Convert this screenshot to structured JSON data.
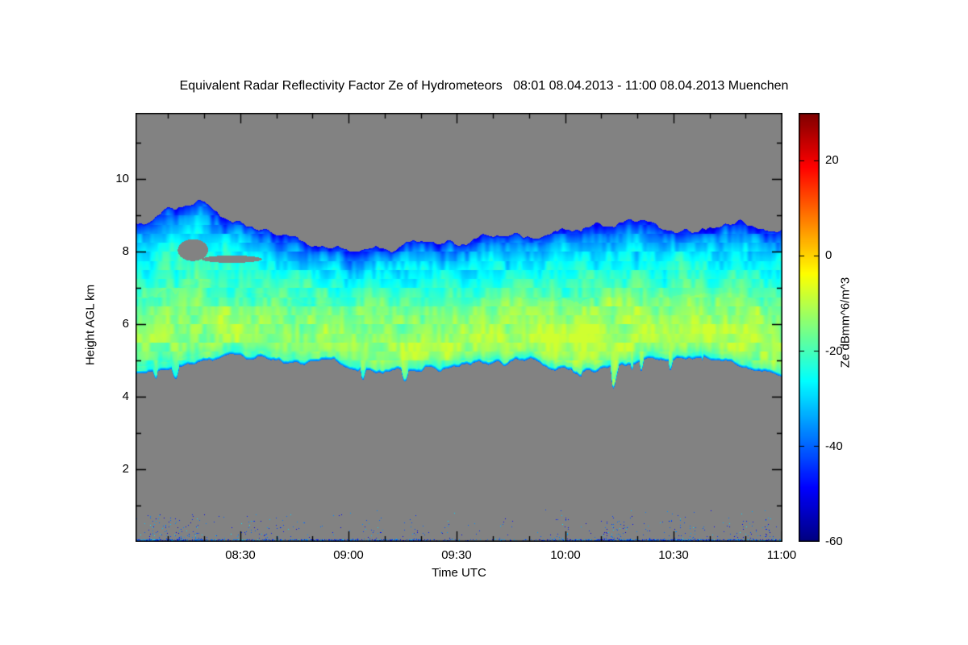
{
  "title": "Equivalent Radar Reflectivity Factor Ze of Hydrometeors   08:01 08.04.2013 - 11:00 08.04.2013 Muenchen",
  "chart_data": {
    "type": "heatmap",
    "title": "Equivalent Radar Reflectivity Factor Ze of Hydrometeors",
    "time_range_label": "08:01 08.04.2013 - 11:00 08.04.2013",
    "station": "Muenchen",
    "xlabel": "Time UTC",
    "ylabel": "Height AGL km",
    "x_range_hours": [
      8.0167,
      11.0
    ],
    "y_range_km": [
      0,
      11.82
    ],
    "x_ticks": [
      {
        "hour": 8.5,
        "label": "08:30"
      },
      {
        "hour": 9.0,
        "label": "09:00"
      },
      {
        "hour": 9.5,
        "label": "09:30"
      },
      {
        "hour": 10.0,
        "label": "10:00"
      },
      {
        "hour": 10.5,
        "label": "10:30"
      },
      {
        "hour": 11.0,
        "label": "11:00"
      }
    ],
    "x_minor_tick_minutes": 10,
    "y_ticks": [
      {
        "km": 2,
        "label": "2"
      },
      {
        "km": 4,
        "label": "4"
      },
      {
        "km": 6,
        "label": "6"
      },
      {
        "km": 8,
        "label": "8"
      },
      {
        "km": 10,
        "label": "10"
      }
    ],
    "y_minor_tick_km": 1,
    "no_signal_color": "#828282",
    "frame_color": "#000000",
    "colorbar": {
      "label": "Ze dBmm^6/m^3",
      "min_db": -60,
      "max_db": 30,
      "ticks": [
        {
          "value": 20,
          "label": "20"
        },
        {
          "value": 0,
          "label": "0"
        },
        {
          "value": -20,
          "label": "-20"
        },
        {
          "value": -40,
          "label": "-40"
        },
        {
          "value": -60,
          "label": "-60"
        }
      ],
      "colormap_stops": [
        {
          "pos": 0.0,
          "color": "#000080"
        },
        {
          "pos": 0.125,
          "color": "#0000FF"
        },
        {
          "pos": 0.375,
          "color": "#00FFFF"
        },
        {
          "pos": 0.625,
          "color": "#FFFF00"
        },
        {
          "pos": 0.875,
          "color": "#FF0000"
        },
        {
          "pos": 1.0,
          "color": "#7F0000"
        }
      ]
    },
    "cloud_layer": {
      "description": "Continuous stratiform ice cloud band across the whole period; cloud top near 8-9.5 km, cloud base near 4.6-5.2 km, brightest reflectivity (yellow, about -10 dB) at 5-6.5 km, cyan (-25 to -35 dB) aloft, thin dark-blue fringe (-40 to -50 dB) at both boundaries",
      "top_profile_km": [
        [
          0,
          8.9
        ],
        [
          0.06,
          9.1
        ],
        [
          0.1,
          9.3
        ],
        [
          0.15,
          8.7
        ],
        [
          0.22,
          8.5
        ],
        [
          0.3,
          8.15
        ],
        [
          0.4,
          8.2
        ],
        [
          0.5,
          8.3
        ],
        [
          0.58,
          8.45
        ],
        [
          0.68,
          8.75
        ],
        [
          0.78,
          8.9
        ],
        [
          0.86,
          8.6
        ],
        [
          0.93,
          8.75
        ],
        [
          1,
          8.6
        ]
      ],
      "base_profile_km": [
        [
          0,
          4.7
        ],
        [
          0.08,
          5.0
        ],
        [
          0.18,
          5.15
        ],
        [
          0.3,
          4.9
        ],
        [
          0.4,
          4.7
        ],
        [
          0.5,
          4.85
        ],
        [
          0.6,
          4.95
        ],
        [
          0.7,
          4.7
        ],
        [
          0.8,
          5.0
        ],
        [
          0.9,
          4.95
        ],
        [
          1,
          4.6
        ]
      ],
      "ze_depth_profile_db": [
        [
          0,
          -46
        ],
        [
          0.08,
          -36
        ],
        [
          0.2,
          -28
        ],
        [
          0.4,
          -21
        ],
        [
          0.6,
          -15
        ],
        [
          0.78,
          -11
        ],
        [
          0.9,
          -13
        ],
        [
          1,
          -22
        ]
      ],
      "texture_amplitude_db": 5,
      "clear_notches": [
        {
          "hour": 8.28,
          "km": 8.05,
          "rx_hour": 0.07,
          "ry_km": 0.3
        },
        {
          "hour": 8.46,
          "km": 7.8,
          "rx_hour": 0.14,
          "ry_km": 0.1
        }
      ]
    },
    "surface_clutter": {
      "description": "Sparse blue/cyan clutter and insect echoes below about 1 km with a dense dark-blue line at the surface",
      "max_height_km": 0.95,
      "ze_db_range": [
        -52,
        -34
      ],
      "density_profile": [
        [
          0,
          0.22
        ],
        [
          0.1,
          0.18
        ],
        [
          0.2,
          0.12
        ],
        [
          0.3,
          0.15
        ],
        [
          0.42,
          0.12
        ],
        [
          0.5,
          0.05
        ],
        [
          0.6,
          0.07
        ],
        [
          0.68,
          0.15
        ],
        [
          0.78,
          0.2
        ],
        [
          0.9,
          0.18
        ],
        [
          1,
          0.15
        ]
      ]
    },
    "seed": 20130408
  }
}
